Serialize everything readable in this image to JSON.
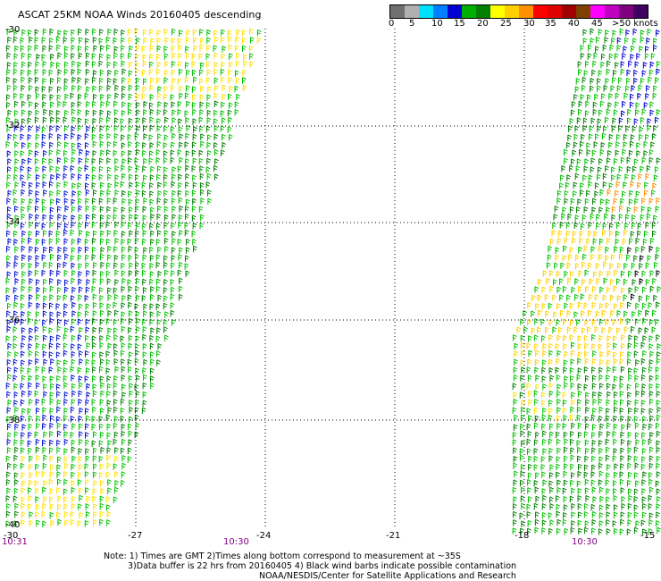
{
  "title": "ASCAT 25KM NOAA Winds 20160405 descending",
  "legend": {
    "labels": [
      "0",
      "5",
      "10",
      "15",
      "20",
      "25",
      "30",
      "35",
      "40",
      "45",
      ">50 knots"
    ],
    "colors": [
      "#707070",
      "#b0b0b0",
      "#00e0ff",
      "#0080ff",
      "#0000d0",
      "#00b000",
      "#008000",
      "#ffff00",
      "#ffd000",
      "#ff9000",
      "#ff0000",
      "#e00000",
      "#a00000",
      "#804000",
      "#ff00ff",
      "#c000c0",
      "#800080",
      "#400060"
    ]
  },
  "map": {
    "lon_ticks": [
      "-30",
      "-27",
      "-24",
      "-21",
      "-18",
      "-15"
    ],
    "lat_ticks": [
      "-30",
      "-32",
      "-34",
      "-36",
      "-38",
      "-40"
    ],
    "times": [
      "10:31",
      "10:30",
      "10:30"
    ],
    "grid": "dotted"
  },
  "notes": [
    "Note: 1) Times are GMT 2)Times along bottom correspond to measurement at ~35S",
    "3)Data buffer is 22 hrs from 20160405 4) Black wind barbs indicate possible contamination",
    "NOAA/NESDIS/Center for Satellite Applications and Research"
  ]
}
